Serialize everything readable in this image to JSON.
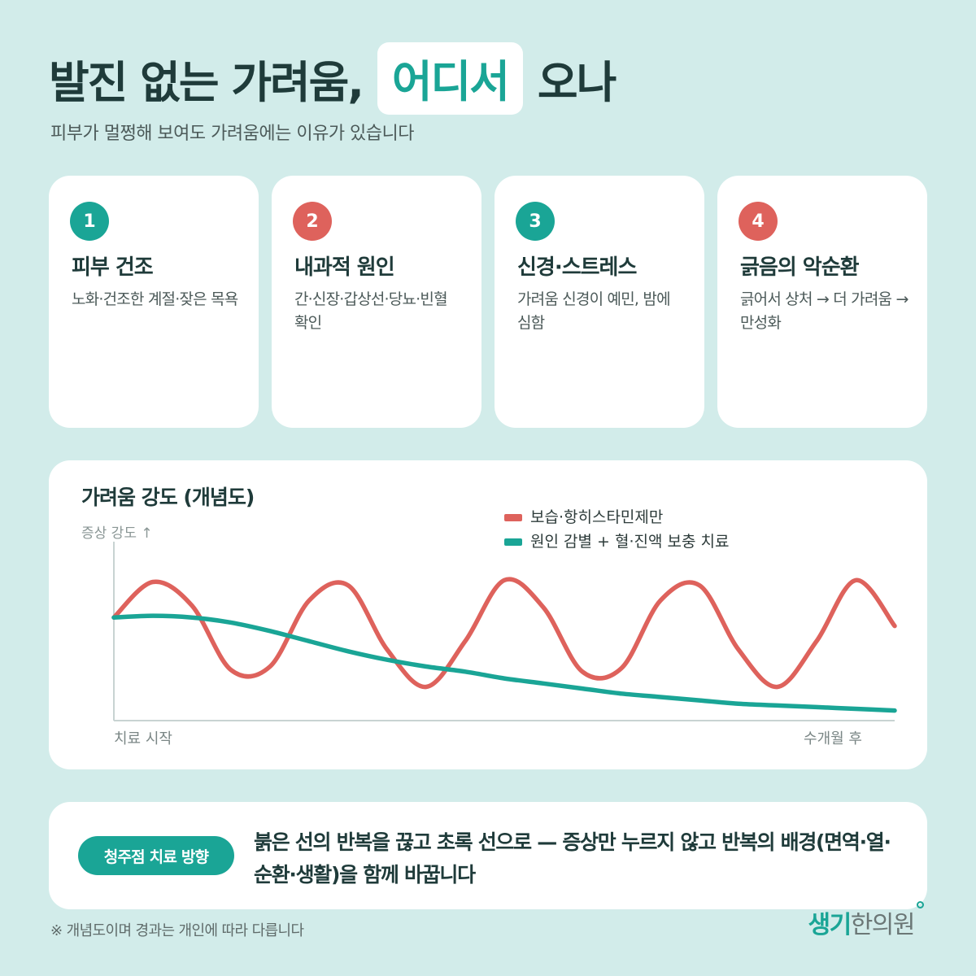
{
  "header": {
    "title_before": "발진 없는 가려움,",
    "title_highlight": "어디서",
    "title_after": "오나",
    "subtitle": "피부가 멀쩡해 보여도 가려움에는 이유가 있습니다"
  },
  "cards": [
    {
      "number": "1",
      "title": "피부 건조",
      "description": "노화·건조한 계절·잦은 목욕",
      "color": "#1aa596"
    },
    {
      "number": "2",
      "title": "내과적 원인",
      "description": "간·신장·갑상선·당뇨·빈혈 확인",
      "color": "#de625c"
    },
    {
      "number": "3",
      "title": "신경·스트레스",
      "description": "가려움 신경이 예민, 밤에 심함",
      "color": "#1aa596"
    },
    {
      "number": "4",
      "title": "긁음의 악순환",
      "description": "긁어서 상처 → 더 가려움 → 만성화",
      "color": "#de625c"
    }
  ],
  "chart_data": {
    "type": "line",
    "title": "가려움 강도 (개념도)",
    "ylabel": "증상 강도 ↑",
    "xlabel": "",
    "x_tick_labels": [
      "치료 시작",
      "수개월 후"
    ],
    "x": [
      0,
      0.05,
      0.1,
      0.15,
      0.2,
      0.25,
      0.3,
      0.35,
      0.4,
      0.45,
      0.5,
      0.55,
      0.6,
      0.65,
      0.7,
      0.75,
      0.8,
      0.85,
      0.9,
      0.95,
      1
    ],
    "xlim": [
      0,
      1
    ],
    "ylim": [
      0,
      1
    ],
    "grid": false,
    "legend_position": "top-right",
    "series": [
      {
        "name": "보습·항히스타민제만",
        "color": "#de625c",
        "values": [
          0.6,
          0.81,
          0.67,
          0.29,
          0.31,
          0.7,
          0.79,
          0.41,
          0.19,
          0.46,
          0.82,
          0.66,
          0.28,
          0.3,
          0.7,
          0.79,
          0.41,
          0.19,
          0.46,
          0.82,
          0.55
        ]
      },
      {
        "name": "원인 감별 + 혈·진액 보충 치료",
        "color": "#1aa596",
        "values": [
          0.6,
          0.61,
          0.6,
          0.57,
          0.52,
          0.46,
          0.4,
          0.35,
          0.31,
          0.28,
          0.24,
          0.21,
          0.18,
          0.15,
          0.13,
          0.11,
          0.09,
          0.08,
          0.07,
          0.06,
          0.05
        ]
      }
    ]
  },
  "direction": {
    "badge": "청주점 치료 방향",
    "text": "붉은 선의 반복을 끊고 초록 선으로 — 증상만 누르지 않고 반복의 배경(면역·열·순환·생활)을 함께 바꿉니다"
  },
  "footnote": "※ 개념도이며 경과는 개인에 따라 다릅니다",
  "brand": {
    "part1": "생기",
    "part2": "한의원"
  }
}
